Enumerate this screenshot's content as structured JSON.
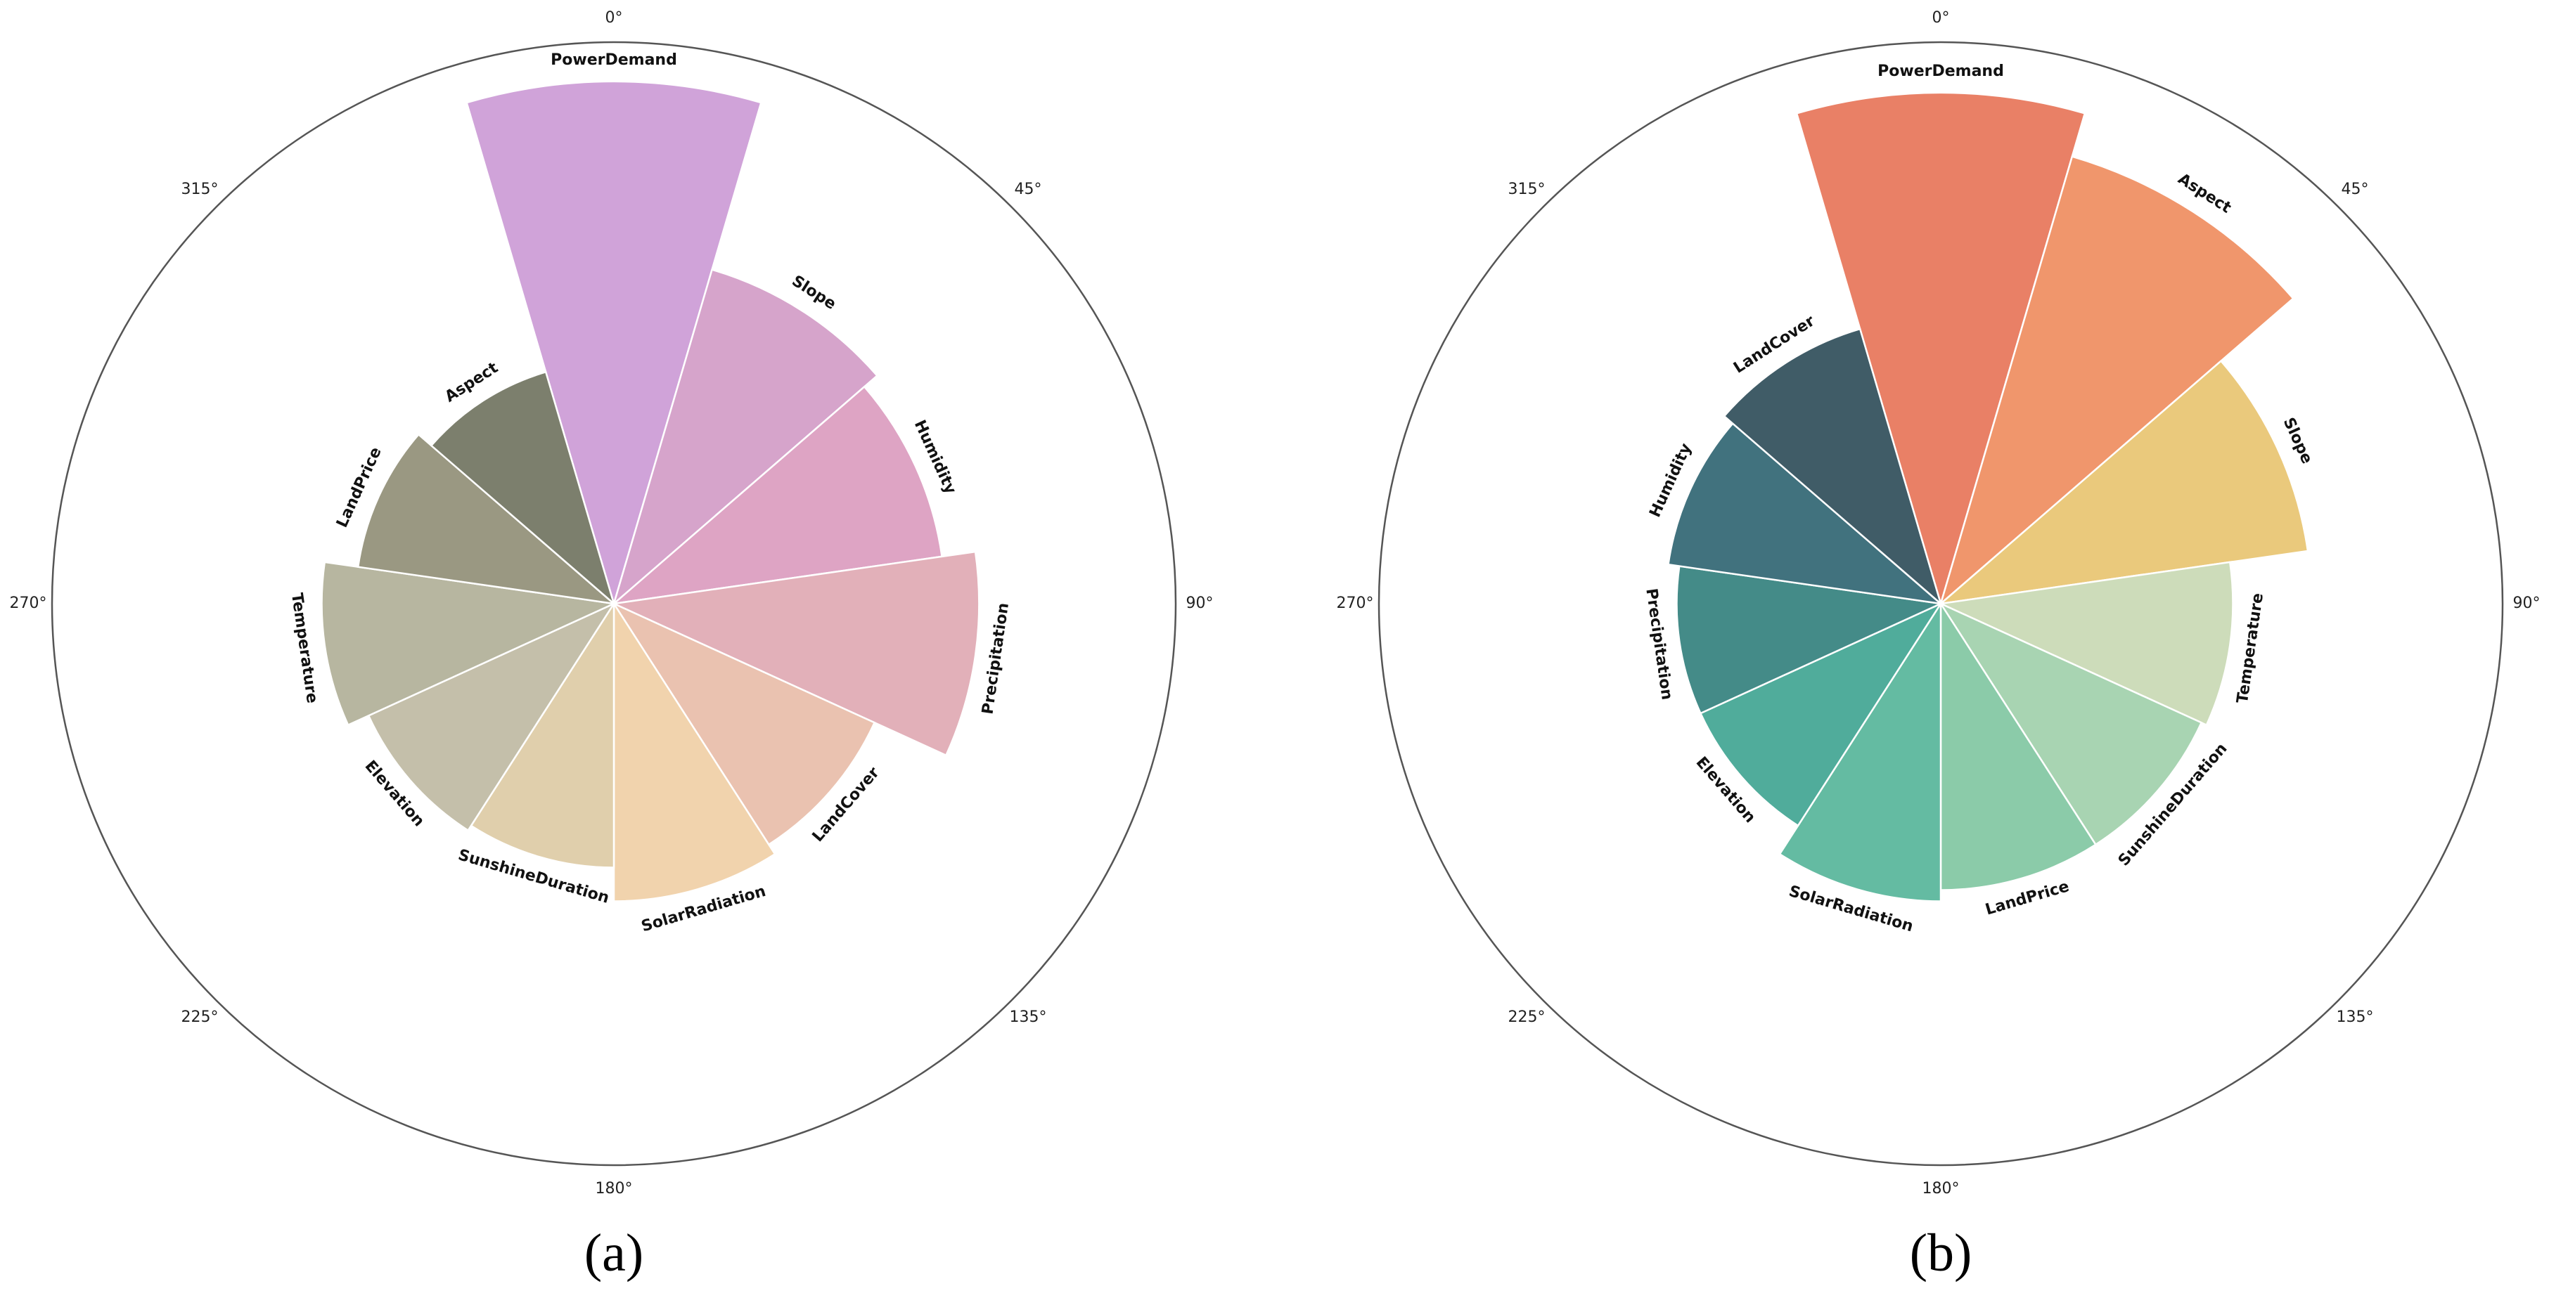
{
  "chart_data": [
    {
      "type": "bar",
      "polar": true,
      "panel_label": "(a)",
      "angular_ticks": [
        "0°",
        "45°",
        "90°",
        "135°",
        "180°",
        "225°",
        "270°",
        "315°"
      ],
      "grid": false,
      "radial_max": 1.0,
      "categories": [
        "PowerDemand",
        "Slope",
        "Humidity",
        "Precipitation",
        "LandCover",
        "SolarRadiation",
        "SunshineDuration",
        "Elevation",
        "Temperature",
        "LandPrice",
        "Aspect"
      ],
      "values": [
        0.93,
        0.62,
        0.59,
        0.65,
        0.51,
        0.53,
        0.47,
        0.48,
        0.52,
        0.46,
        0.43
      ],
      "colors": [
        "#d0a3d9",
        "#d6a4cb",
        "#dea4c4",
        "#e2b0b9",
        "#eac2b0",
        "#f1d3ad",
        "#e0cfac",
        "#c4bfaa",
        "#b7b6a0",
        "#9a9882",
        "#7c7f6d"
      ]
    },
    {
      "type": "bar",
      "polar": true,
      "panel_label": "(b)",
      "angular_ticks": [
        "0°",
        "45°",
        "90°",
        "135°",
        "180°",
        "225°",
        "270°",
        "315°"
      ],
      "grid": false,
      "radial_max": 1.0,
      "categories": [
        "PowerDemand",
        "Aspect",
        "Slope",
        "Temperature",
        "SunshineDuration",
        "LandPrice",
        "SolarRadiation",
        "Elevation",
        "Precipitation",
        "Humidity",
        "LandCover"
      ],
      "values": [
        0.91,
        0.83,
        0.66,
        0.52,
        0.51,
        0.51,
        0.53,
        0.47,
        0.47,
        0.49,
        0.51
      ],
      "colors": [
        "#e98066",
        "#f0966c",
        "#eac97c",
        "#cddcba",
        "#a8d4b2",
        "#8bcba9",
        "#64bba2",
        "#50ac9b",
        "#448b88",
        "#41727e",
        "#405c67"
      ]
    }
  ]
}
